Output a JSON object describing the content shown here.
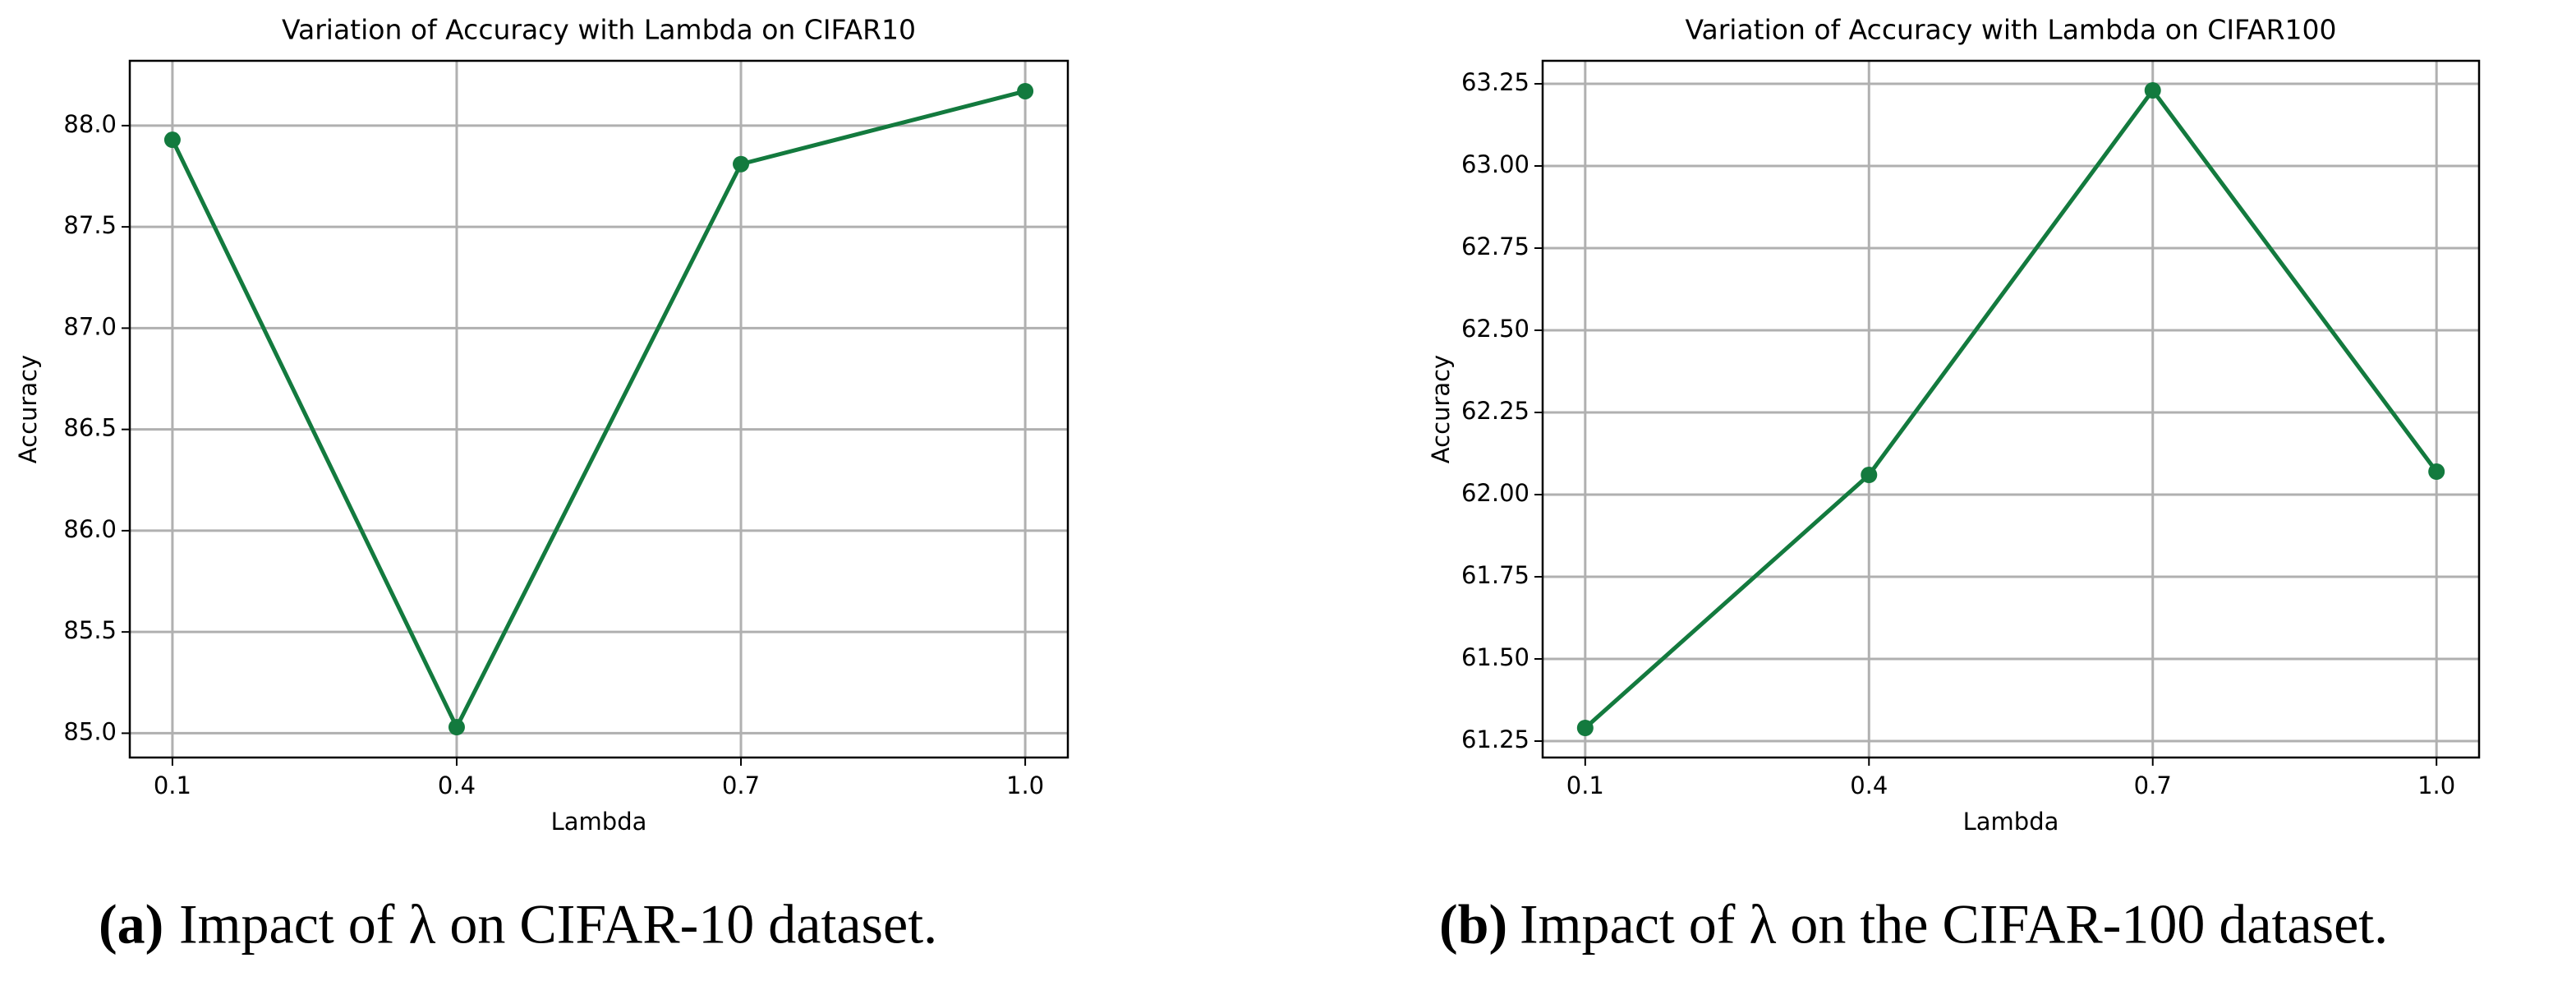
{
  "chart_data": [
    {
      "type": "line",
      "title": "Variation of Accuracy with Lambda on CIFAR10",
      "x_label": "Lambda",
      "y_label": "Accuracy",
      "x": [
        0.1,
        0.4,
        0.7,
        {
          "value": 1,
          "label": "1.0"
        }
      ],
      "series": [
        {
          "color": "#137a3e",
          "values": [
            87.93,
            85.03,
            87.81,
            88.17
          ]
        }
      ],
      "xlim": [
        0.055,
        1.045
      ],
      "ylim": [
        84.88,
        88.32
      ],
      "xticks": [
        0.1,
        0.4,
        0.7,
        {
          "value": 1,
          "label": "1.0"
        }
      ],
      "yticks": [
        {
          "value": 85,
          "label": "85.0"
        },
        85.5,
        {
          "value": 86,
          "label": "86.0"
        },
        86.5,
        {
          "value": 87,
          "label": "87.0"
        },
        87.5,
        {
          "value": 88,
          "label": "88.0"
        }
      ],
      "grid": true
    },
    {
      "type": "line",
      "title": "Variation of Accuracy with Lambda on CIFAR100",
      "x_label": "Lambda",
      "y_label": "Accuracy",
      "x": [
        0.1,
        0.4,
        0.7,
        {
          "value": 1,
          "label": "1.0"
        }
      ],
      "series": [
        {
          "color": "#137a3e",
          "values": [
            61.29,
            62.06,
            63.23,
            62.07
          ]
        }
      ],
      "xlim": [
        0.055,
        1.045
      ],
      "ylim": [
        61.2,
        63.32
      ],
      "xticks": [
        0.1,
        0.4,
        0.7,
        {
          "value": 1,
          "label": "1.0"
        }
      ],
      "yticks": [
        61.25,
        {
          "value": 61.5,
          "label": "61.50"
        },
        61.75,
        {
          "value": 62,
          "label": "62.00"
        },
        62.25,
        {
          "value": 62.5,
          "label": "62.50"
        },
        62.75,
        {
          "value": 63,
          "label": "63.00"
        },
        63.25
      ],
      "grid": true
    }
  ],
  "captions": [
    {
      "label": "(a)",
      "text": "Impact of λ on CIFAR-10 dataset."
    },
    {
      "label": "(b)",
      "text": "Impact of λ on the CIFAR-100 dataset."
    }
  ]
}
